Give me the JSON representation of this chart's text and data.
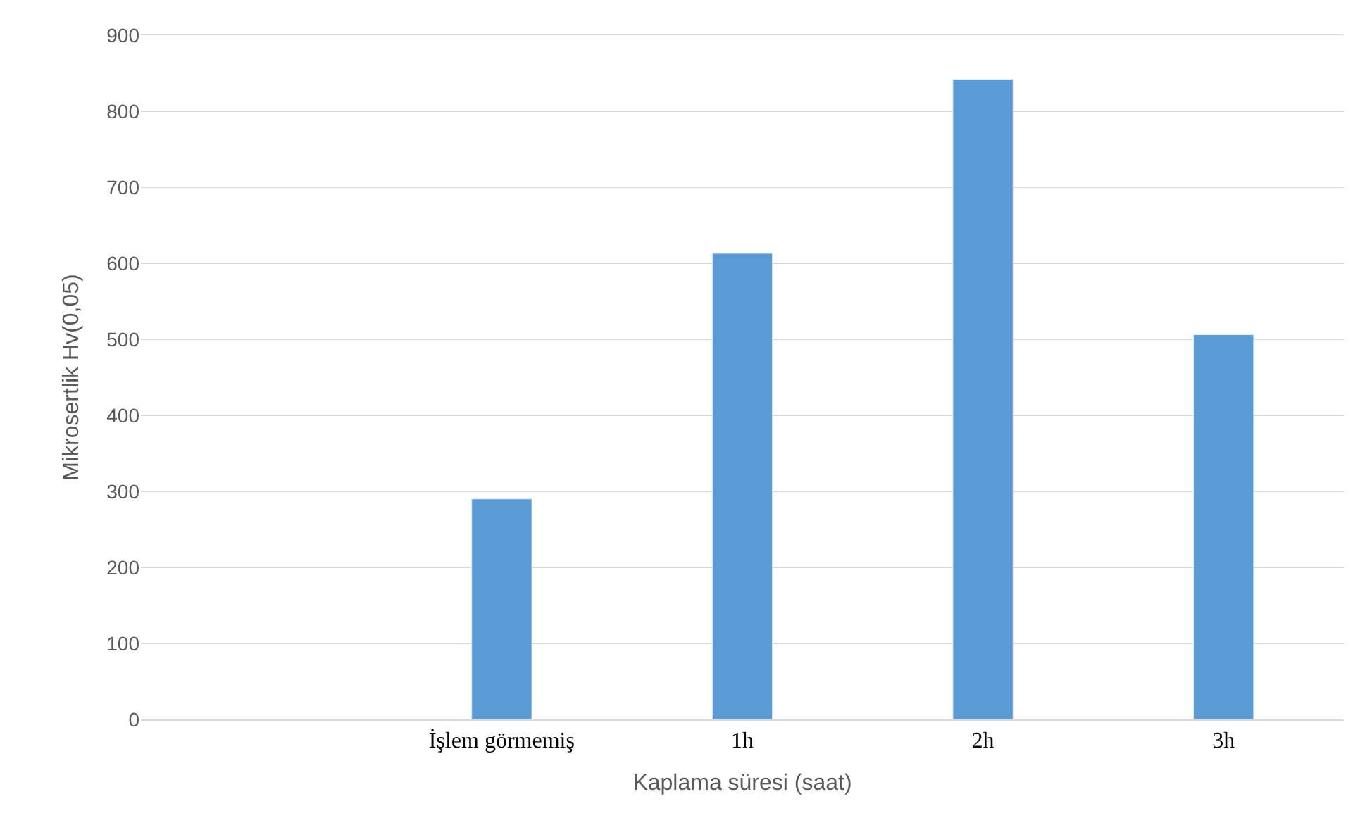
{
  "chart_data": {
    "type": "bar",
    "xlabel": "Kaplama süresi (saat)",
    "ylabel": "Mikrosertlik Hv(0,05)",
    "categories": [
      null,
      "İşlem görmemiş",
      "1h",
      "2h",
      "3h"
    ],
    "values": [
      null,
      290,
      613,
      842,
      506
    ],
    "color": "#5b9bd5",
    "ylim": [
      0,
      900
    ],
    "yticks": [
      0,
      100,
      200,
      300,
      400,
      500,
      600,
      700,
      800,
      900
    ],
    "grid": "y"
  }
}
